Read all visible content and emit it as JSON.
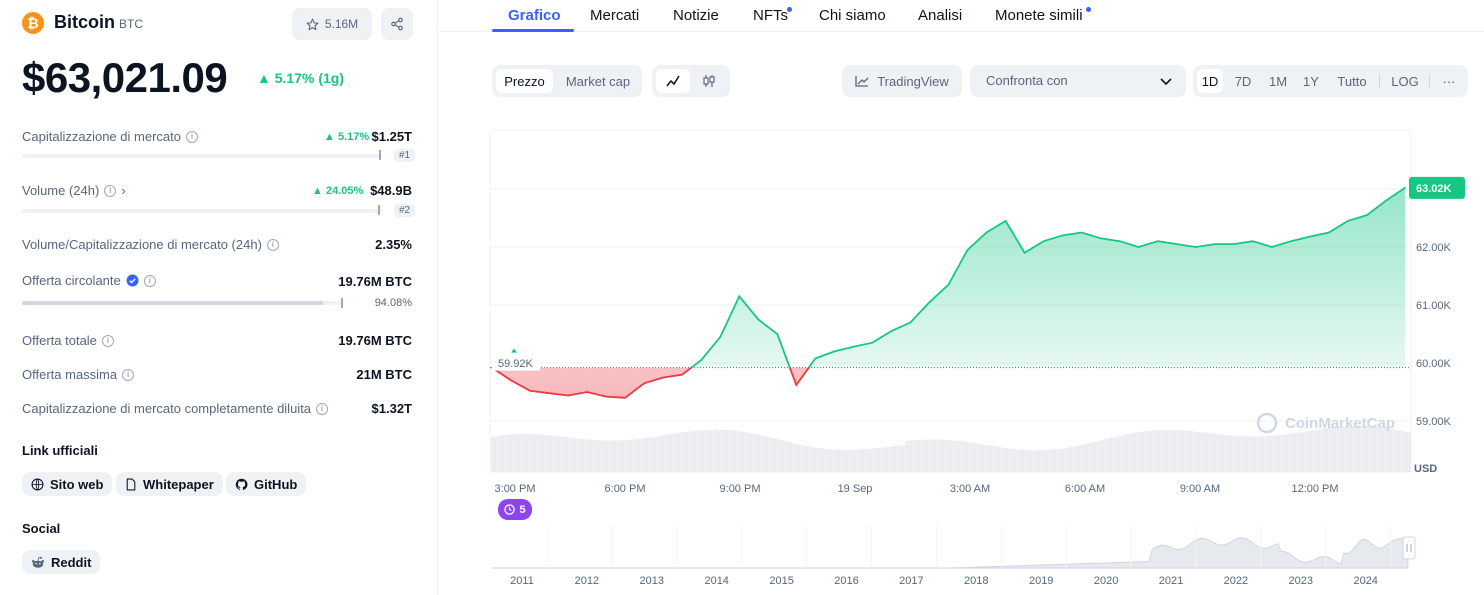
{
  "coin": {
    "name": "Bitcoin",
    "symbol": "BTC",
    "watchlist_count": "5.16M",
    "price": "$63,021.09",
    "change": "5.17% (1g)",
    "logo_char": "₿"
  },
  "stats": {
    "market_cap": {
      "label": "Capitalizzazione di mercato",
      "change": "5.17%",
      "value": "$1.25T",
      "rank": "#1"
    },
    "volume": {
      "label": "Volume (24h)",
      "change": "24.05%",
      "value": "$48.9B",
      "rank": "#2"
    },
    "vol_mcap": {
      "label": "Volume/Capitalizzazione di mercato (24h)",
      "value": "2.35%"
    },
    "circulating": {
      "label": "Offerta circolante",
      "value": "19.76M BTC",
      "percent": "94.08%",
      "fraction": 0.9408
    },
    "total_supply": {
      "label": "Offerta totale",
      "value": "19.76M BTC"
    },
    "max_supply": {
      "label": "Offerta massima",
      "value": "21M BTC"
    },
    "fdv": {
      "label": "Capitalizzazione di mercato completamente diluita",
      "value": "$1.32T"
    }
  },
  "links": {
    "title": "Link ufficiali",
    "website": "Sito web",
    "whitepaper": "Whitepaper",
    "github": "GitHub"
  },
  "social": {
    "title": "Social",
    "reddit": "Reddit"
  },
  "tabs": [
    "Grafico",
    "Mercati",
    "Notizie",
    "NFTs",
    "Chi siamo",
    "Analisi",
    "Monete simili"
  ],
  "toolbar": {
    "price": "Prezzo",
    "market_cap": "Market cap",
    "tradingview": "TradingView",
    "compare": "Confronta con",
    "ranges": [
      "1D",
      "7D",
      "1M",
      "1Y",
      "Tutto",
      "LOG"
    ],
    "more": "···"
  },
  "chart": {
    "open_label": "59.92K",
    "current_label": "63.02K",
    "currency": "USD",
    "watermark": "CoinMarketCap",
    "events_badge": "5",
    "x_ticks": [
      "3:00 PM",
      "6:00 PM",
      "9:00 PM",
      "19 Sep",
      "3:00 AM",
      "6:00 AM",
      "9:00 AM",
      "12:00 PM"
    ],
    "y_ticks": [
      "62.00K",
      "61.00K",
      "60.00K",
      "59.00K"
    ],
    "year_ticks": [
      "2011",
      "2012",
      "2013",
      "2014",
      "2015",
      "2016",
      "2017",
      "2018",
      "2019",
      "2020",
      "2021",
      "2022",
      "2023",
      "2024"
    ],
    "colors": {
      "up": "#16c784",
      "down": "#ea3943",
      "accent": "#3861fb",
      "badge": "#8e44ec"
    }
  },
  "chart_data": {
    "type": "area",
    "title": "",
    "xlabel": "",
    "ylabel": "USD",
    "ylim": [
      58800,
      63800
    ],
    "baseline": 59920,
    "x": [
      "14:00",
      "14:30",
      "15:00",
      "15:30",
      "16:00",
      "16:30",
      "17:00",
      "17:30",
      "18:00",
      "18:30",
      "19:00",
      "19:30",
      "20:00",
      "20:30",
      "21:00",
      "21:30",
      "22:00",
      "22:30",
      "23:00",
      "23:30",
      "00:00",
      "00:30",
      "01:00",
      "01:30",
      "02:00",
      "02:30",
      "03:00",
      "03:30",
      "04:00",
      "04:30",
      "05:00",
      "05:30",
      "06:00",
      "06:30",
      "07:00",
      "07:30",
      "08:00",
      "08:30",
      "09:00",
      "09:30",
      "10:00",
      "10:30",
      "11:00",
      "11:30",
      "12:00",
      "12:30",
      "13:00",
      "13:30",
      "14:00"
    ],
    "series": [
      {
        "values": [
          59920,
          59700,
          59520,
          59480,
          59440,
          59500,
          59420,
          59400,
          59650,
          59750,
          59800,
          60050,
          60450,
          61150,
          60750,
          60500,
          59620,
          60080,
          60200,
          60280,
          60350,
          60550,
          60700,
          61050,
          61350,
          61950,
          62250,
          62450,
          61900,
          62100,
          62200,
          62250,
          62150,
          62100,
          62000,
          62100,
          62050,
          62000,
          62050,
          62050,
          62100,
          62000,
          62100,
          62180,
          62250,
          62450,
          62550,
          62800,
          63020
        ]
      }
    ]
  }
}
